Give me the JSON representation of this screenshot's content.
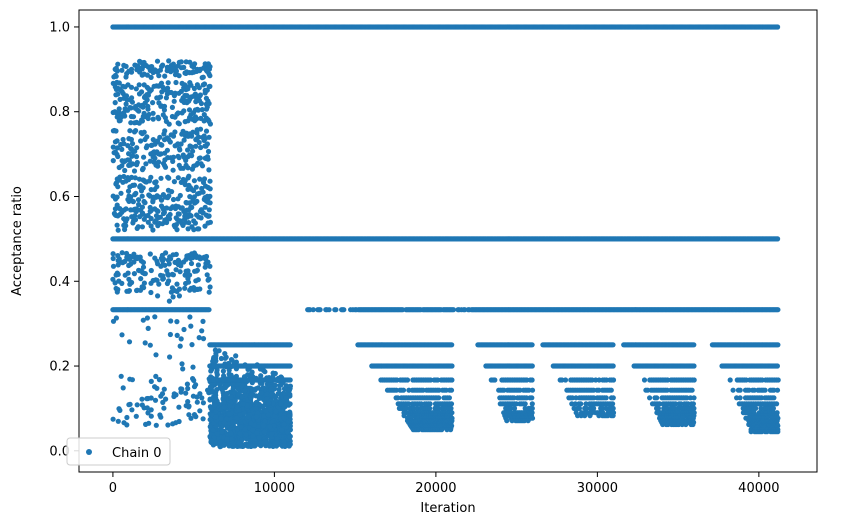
{
  "chart_data": {
    "type": "scatter",
    "xlabel": "Iteration",
    "ylabel": "Acceptance ratio",
    "xlim": [
      -2100,
      43600
    ],
    "ylim": [
      -0.05,
      1.04
    ],
    "xticks": [
      0,
      10000,
      20000,
      30000,
      40000
    ],
    "xtick_labels": [
      "0",
      "10000",
      "20000",
      "30000",
      "40000"
    ],
    "yticks": [
      0.0,
      0.2,
      0.4,
      0.6,
      0.8,
      1.0
    ],
    "ytick_labels": [
      "0.0",
      "0.2",
      "0.4",
      "0.6",
      "0.8",
      "1.0"
    ],
    "grid": false,
    "legend_position": "lower-left",
    "series": [
      {
        "name": "Chain 0",
        "color": "#1f77b4",
        "marker": "circle",
        "bands": [
          {
            "x": [
              0,
              41200
            ],
            "y": 1.0,
            "density": "continuous"
          },
          {
            "x": [
              0,
              41200
            ],
            "y": 0.5,
            "density": "continuous"
          },
          {
            "x": [
              0,
              6000
            ],
            "y": 0.333,
            "density": "continuous"
          },
          {
            "x": [
              11500,
              41200
            ],
            "y": 0.333,
            "density": "sparse-to-continuous"
          },
          {
            "x": [
              0,
              6000
            ],
            "y_range": [
              0.52,
              0.94
            ],
            "density": "dense"
          },
          {
            "x": [
              0,
              6000
            ],
            "y_range": [
              0.08,
              0.47
            ],
            "density": "moderate"
          },
          {
            "x": [
              6000,
              11000
            ],
            "y_range": [
              0.0,
              0.25
            ],
            "density": "dense"
          },
          {
            "x": [
              15000,
              21000
            ],
            "y_range": [
              0.05,
              0.25
            ],
            "density": "decaying-steps"
          },
          {
            "x": [
              22500,
              26000
            ],
            "y_range": [
              0.05,
              0.25
            ],
            "density": "decaying-steps"
          },
          {
            "x": [
              26500,
              31000
            ],
            "y_range": [
              0.08,
              0.25
            ],
            "density": "decaying-steps"
          },
          {
            "x": [
              31500,
              36000
            ],
            "y_range": [
              0.06,
              0.25
            ],
            "density": "decaying-steps"
          },
          {
            "x": [
              37000,
              41200
            ],
            "y_range": [
              0.04,
              0.25
            ],
            "density": "decaying-steps"
          }
        ]
      }
    ]
  }
}
